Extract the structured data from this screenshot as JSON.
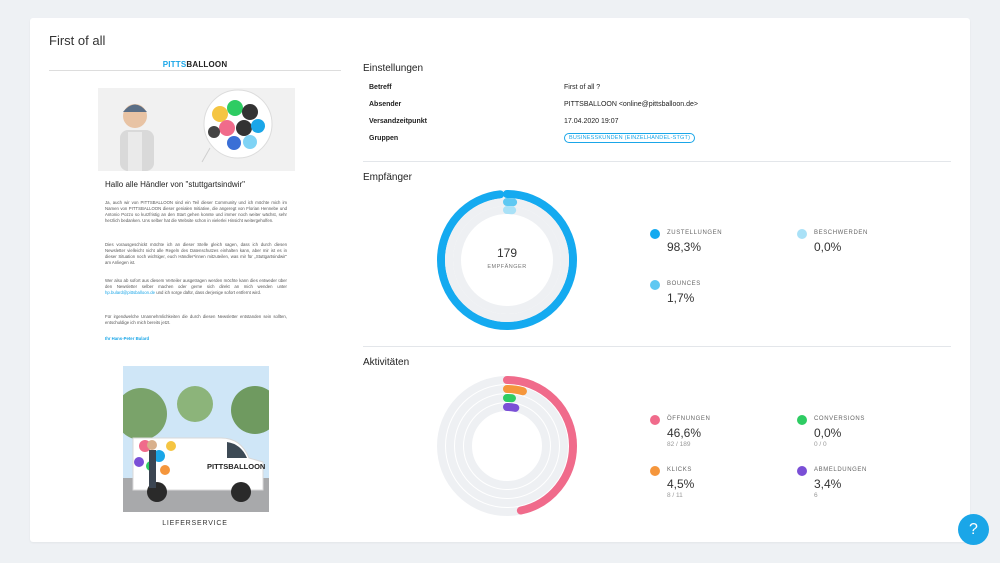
{
  "page": {
    "title": "First of all"
  },
  "preview": {
    "brand_part1": "PITTS",
    "brand_part2": "BALLOON",
    "greeting": "Hallo alle Händler von \"stuttgartsindwir\"",
    "paragraph1": "Ja, auch wir von PITTSBALLOON sind ein Teil dieser Community und ich möchte mich im Namen von PITTSBALLOON dieser genialen Initiative, die angeregt von Florian Hennebe und Antonio Pozzo so kurzfristig an den Start gehen konnte und immer noch weiter wächst, sehr herzlich bedanken. Uns selber hat die Website schon in vielerlei Hinsicht weitergeholfen.",
    "paragraph2": "Dies vorausgeschickt möchte ich an dieser Stelle gleich sagen, dass ich durch diesen Newsletter vielleicht nicht alle Regeln des Datenschutzes einhalten kann, aber mir ist es in dieser Situation noch wichtiger, euch Händler*innen mitzuteilen, was mir für „Stuttgartsindwir\" am Anliegen ist.",
    "paragraph3_pre": "Wer also ab sofort aus diesem Verteiler ausgetragen werden möchte kann dies entweder über den Newsletter selber machen oder gerne sich direkt an mich wenden unter",
    "paragraph3_link": "hp.bulard@pittsballoon.de",
    "paragraph3_post": "und ich sorge dafür, dass derjenige sofort entfernt wird.",
    "paragraph4": "Für irgendwelche Unannehmlichkeiten die durch diesen Newsletter entstanden sein sollten, entschuldige ich mich bereits jetzt.",
    "signature": "Ihr Hans-Peter Bulard",
    "van_text": "PITTSBALLOON",
    "caption": "LIEFERSERVICE"
  },
  "settings": {
    "title": "Einstellungen",
    "rows": [
      {
        "key": "Betreff",
        "value": "First of all ?"
      },
      {
        "key": "Absender",
        "value": "PITTSBALLOON <online@pittsballoon.de>"
      },
      {
        "key": "Versandzeitpunkt",
        "value": "17.04.2020 19:07"
      },
      {
        "key": "Gruppen",
        "badge": "BUSINESSKUNDEN (EINZELHANDEL-STGT)"
      }
    ]
  },
  "empfaenger": {
    "title": "Empfänger",
    "count": "179",
    "count_label": "EMPFÄNGER",
    "rings": [
      {
        "label": "ZUSTELLUNGEN",
        "value": "98,3%",
        "fraction": 0.983,
        "color": "#14aaf0"
      },
      {
        "label": "BOUNCES",
        "value": "1,7%",
        "fraction": 0.017,
        "color": "#5ec8f2"
      },
      {
        "label": "BESCHWERDEN",
        "value": "0,0%",
        "fraction": 0.0,
        "color": "#a9e1f7"
      }
    ]
  },
  "aktivitaeten": {
    "title": "Aktivitäten",
    "rings": [
      {
        "label": "ÖFFNUNGEN",
        "value": "46,6%",
        "sub": "82 / 189",
        "fraction": 0.466,
        "color": "#f06b8b"
      },
      {
        "label": "KLICKS",
        "value": "4,5%",
        "sub": "8 / 11",
        "fraction": 0.045,
        "color": "#f5963c"
      },
      {
        "label": "CONVERSIONS",
        "value": "0,0%",
        "sub": "0 / 0",
        "fraction": 0.0,
        "color": "#2ecc63"
      },
      {
        "label": "ABMELDUNGEN",
        "value": "3,4%",
        "sub": "6",
        "fraction": 0.034,
        "color": "#7a4fd6"
      }
    ]
  },
  "help": {
    "label": "?"
  }
}
